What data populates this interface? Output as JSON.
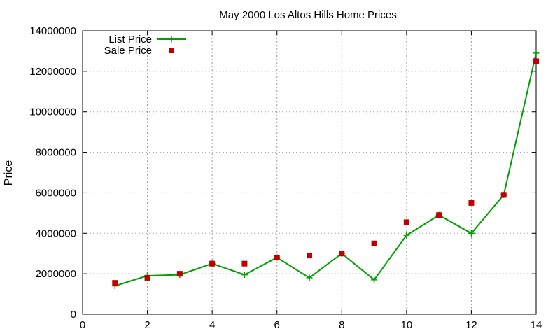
{
  "chart_data": {
    "type": "line",
    "title": "May 2000 Los Altos Hills Home Prices",
    "xlabel": "",
    "ylabel": "Price",
    "xlim": [
      0,
      14
    ],
    "ylim": [
      0,
      14000000
    ],
    "x_ticks": [
      0,
      2,
      4,
      6,
      8,
      10,
      12,
      14
    ],
    "y_ticks": [
      0,
      2000000,
      4000000,
      6000000,
      8000000,
      10000000,
      12000000,
      14000000
    ],
    "grid": true,
    "legend_position": "top-left",
    "series": [
      {
        "name": "List Price",
        "style": "line-with-plus-markers",
        "color": "#00a000",
        "x": [
          1,
          2,
          3,
          4,
          5,
          6,
          7,
          8,
          9,
          10,
          11,
          12,
          13,
          14
        ],
        "y": [
          1400000,
          1900000,
          1950000,
          2500000,
          1950000,
          2800000,
          1800000,
          3000000,
          1700000,
          3900000,
          4900000,
          4000000,
          5900000,
          12900000
        ]
      },
      {
        "name": "Sale Price",
        "style": "square-markers",
        "color": "#c00000",
        "x": [
          1,
          2,
          3,
          4,
          5,
          6,
          7,
          8,
          9,
          10,
          11,
          12,
          13,
          14
        ],
        "y": [
          1550000,
          1800000,
          2000000,
          2500000,
          2500000,
          2800000,
          2900000,
          3000000,
          3500000,
          4550000,
          4900000,
          5500000,
          5900000,
          12500000
        ]
      }
    ]
  }
}
